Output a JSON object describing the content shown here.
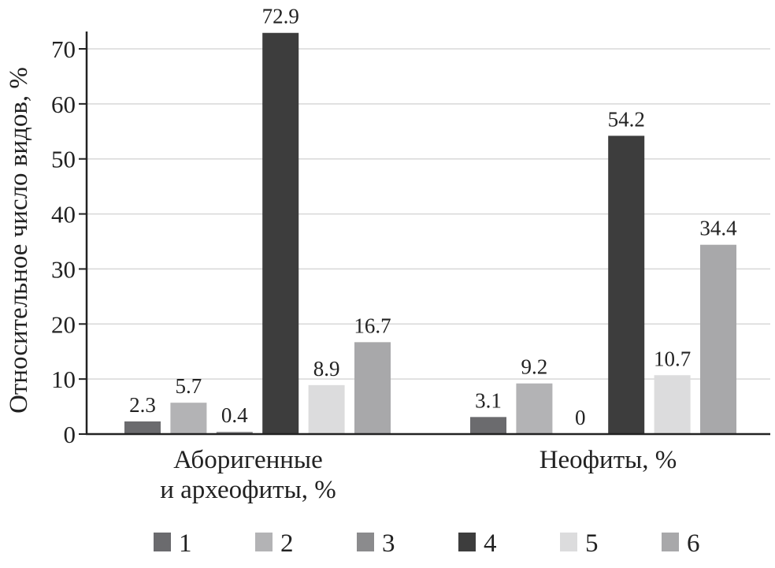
{
  "chart_data": {
    "type": "bar",
    "title": "",
    "xlabel": "",
    "ylabel": "Относительное число видов, %",
    "ylim": [
      0,
      70
    ],
    "yticks": [
      0,
      10,
      20,
      30,
      40,
      50,
      60,
      70
    ],
    "grid": true,
    "legend_placement": "bottom",
    "categories": [
      [
        "Аборигенные",
        "и археофиты, %"
      ],
      [
        "Неофиты, %"
      ]
    ],
    "series": [
      {
        "name": "1",
        "color": "#6b6b6e",
        "values": [
          2.3,
          3.1
        ],
        "labels": [
          "2.3",
          "3.1"
        ]
      },
      {
        "name": "2",
        "color": "#b3b3b5",
        "values": [
          5.7,
          9.2
        ],
        "labels": [
          "5.7",
          "9.2"
        ]
      },
      {
        "name": "3",
        "color": "#8b8b8d",
        "values": [
          0.4,
          0
        ],
        "labels": [
          "0.4",
          "0"
        ]
      },
      {
        "name": "4",
        "color": "#3d3d3d",
        "values": [
          72.9,
          54.2
        ],
        "labels": [
          "72.9",
          "54.2"
        ]
      },
      {
        "name": "5",
        "color": "#dcdcdd",
        "values": [
          8.9,
          10.7
        ],
        "labels": [
          "8.9",
          "10.7"
        ]
      },
      {
        "name": "6",
        "color": "#a8a8aa",
        "values": [
          16.7,
          34.4
        ],
        "labels": [
          "16.7",
          "34.4"
        ]
      }
    ]
  }
}
